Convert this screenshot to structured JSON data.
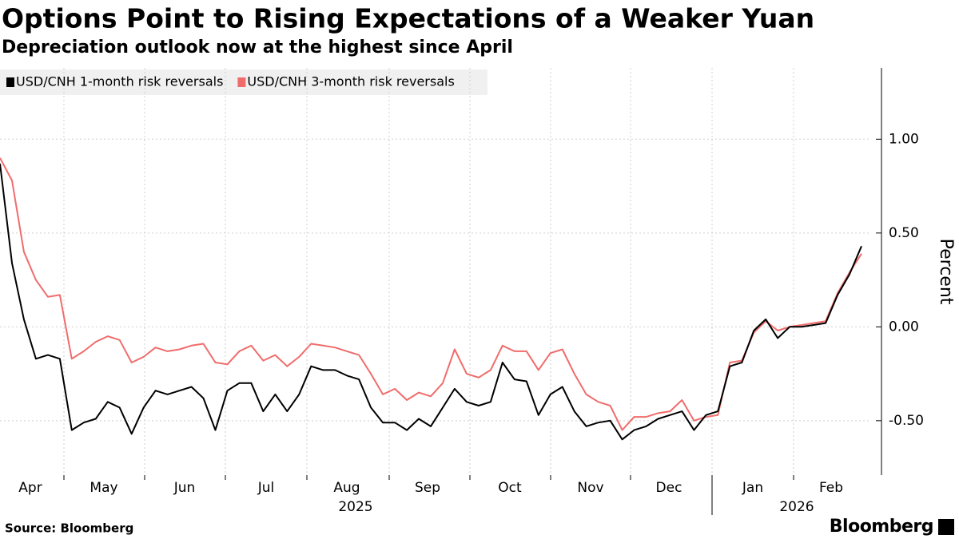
{
  "chart_data": {
    "type": "line",
    "title": "Options Point to Rising Expectations of a Weaker Yuan",
    "subtitle": "Depreciation outlook now at the highest since April",
    "source": "Source: Bloomberg",
    "brand": "Bloomberg",
    "y_label": "Percent",
    "months": [
      "Apr",
      "May",
      "Jun",
      "Jul",
      "Aug",
      "Sep",
      "Oct",
      "Nov",
      "Dec",
      "Jan",
      "Feb"
    ],
    "years": [
      "2025",
      "2026"
    ],
    "ylim": [
      -0.79,
      1.38
    ],
    "yticks": [
      {
        "value": 1,
        "label": "1.00"
      },
      {
        "value": 0.5,
        "label": "0.50"
      },
      {
        "value": 0,
        "label": "0.00"
      },
      {
        "value": -0.5,
        "label": "-0.50"
      }
    ],
    "grid": true,
    "series": [
      {
        "name": "USD/CNH 1-month risk reversals",
        "color": "#000000",
        "values": [
          0.87,
          0.34,
          0.04,
          -0.17,
          -0.15,
          -0.17,
          -0.55,
          -0.51,
          -0.49,
          -0.4,
          -0.43,
          -0.57,
          -0.43,
          -0.34,
          -0.36,
          -0.34,
          -0.32,
          -0.38,
          -0.55,
          -0.34,
          -0.3,
          -0.3,
          -0.45,
          -0.36,
          -0.45,
          -0.36,
          -0.21,
          -0.23,
          -0.23,
          -0.26,
          -0.28,
          -0.43,
          -0.51,
          -0.51,
          -0.55,
          -0.49,
          -0.53,
          -0.43,
          -0.33,
          -0.4,
          -0.42,
          -0.4,
          -0.19,
          -0.28,
          -0.29,
          -0.47,
          -0.36,
          -0.32,
          -0.45,
          -0.53,
          -0.51,
          -0.5,
          -0.6,
          -0.55,
          -0.53,
          -0.49,
          -0.47,
          -0.45,
          -0.55,
          -0.47,
          -0.45,
          -0.21,
          -0.19,
          -0.02,
          0.04,
          -0.06,
          0.0,
          0.0,
          0.01,
          0.02,
          0.17,
          0.28,
          0.43
        ]
      },
      {
        "name": "USD/CNH 3-month risk reversals",
        "color": "#f06c6c",
        "values": [
          0.9,
          0.78,
          0.4,
          0.25,
          0.16,
          0.17,
          -0.17,
          -0.13,
          -0.08,
          -0.05,
          -0.07,
          -0.19,
          -0.16,
          -0.11,
          -0.13,
          -0.12,
          -0.1,
          -0.09,
          -0.19,
          -0.2,
          -0.13,
          -0.1,
          -0.18,
          -0.15,
          -0.21,
          -0.16,
          -0.09,
          -0.1,
          -0.11,
          -0.13,
          -0.15,
          -0.25,
          -0.36,
          -0.33,
          -0.39,
          -0.35,
          -0.37,
          -0.3,
          -0.12,
          -0.25,
          -0.27,
          -0.23,
          -0.1,
          -0.13,
          -0.13,
          -0.23,
          -0.14,
          -0.12,
          -0.25,
          -0.36,
          -0.4,
          -0.42,
          -0.55,
          -0.48,
          -0.48,
          -0.46,
          -0.45,
          -0.39,
          -0.5,
          -0.48,
          -0.47,
          -0.19,
          -0.18,
          -0.03,
          0.03,
          -0.02,
          0.0,
          0.01,
          0.02,
          0.03,
          0.18,
          0.29,
          0.39
        ]
      }
    ]
  }
}
